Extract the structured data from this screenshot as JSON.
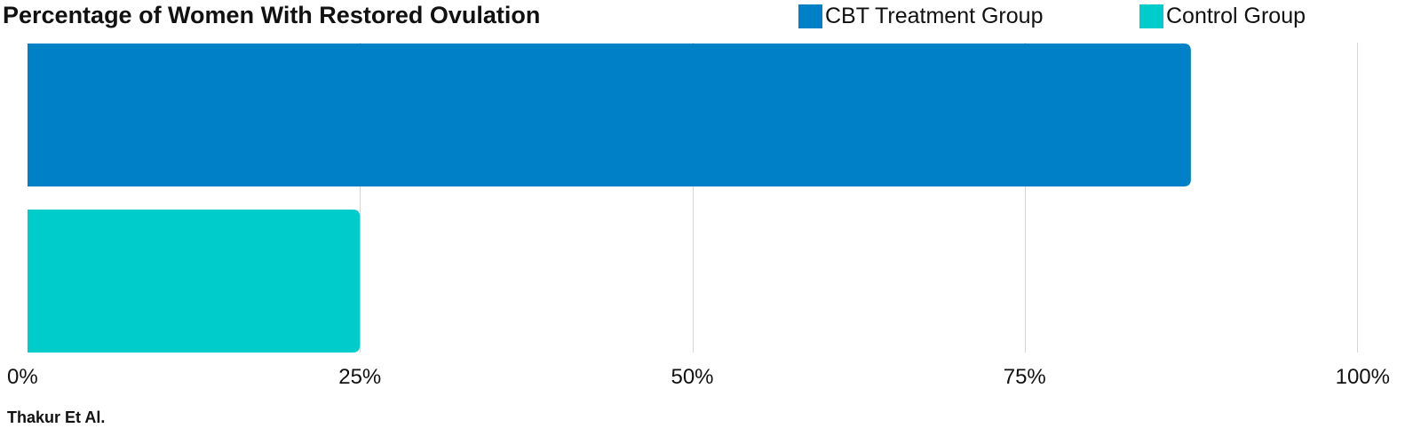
{
  "chart_data": {
    "type": "bar",
    "orientation": "horizontal",
    "title": "Percentage of Women With Restored Ovulation",
    "xlim": [
      0,
      100
    ],
    "x_ticks": [
      0,
      25,
      50,
      75,
      100
    ],
    "x_tick_labels": [
      "0%",
      "25%",
      "50%",
      "75%",
      "100%"
    ],
    "grid": true,
    "legend_position": "top-right",
    "series": [
      {
        "name": "CBT Treatment Group",
        "value": 87.5,
        "color": "#0080C6"
      },
      {
        "name": "Control Group",
        "value": 25,
        "color": "#00CCCC"
      }
    ],
    "source": "Thakur Et Al."
  }
}
